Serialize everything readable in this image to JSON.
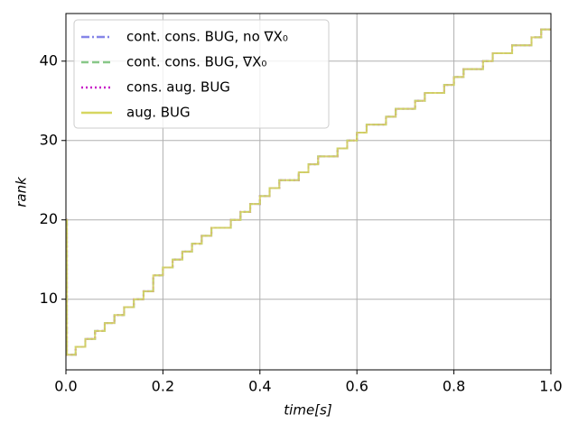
{
  "chart_data": {
    "type": "line",
    "step": "post",
    "xlabel": "time[s]",
    "ylabel": "rank",
    "xlim": [
      0,
      1
    ],
    "ylim": [
      1.1,
      46
    ],
    "xticks": [
      {
        "value": 0,
        "label": "0.0"
      },
      0.2,
      0.4,
      0.6,
      0.8,
      {
        "value": 1,
        "label": "1.0"
      }
    ],
    "yticks": [
      10,
      20,
      30,
      40
    ],
    "grid": true,
    "legend": "upper left",
    "x": [
      0,
      0.002,
      0.02,
      0.04,
      0.06,
      0.08,
      0.1,
      0.12,
      0.14,
      0.16,
      0.18,
      0.2,
      0.22,
      0.24,
      0.26,
      0.28,
      0.3,
      0.32,
      0.34,
      0.36,
      0.38,
      0.4,
      0.42,
      0.44,
      0.46,
      0.48,
      0.5,
      0.52,
      0.54,
      0.56,
      0.58,
      0.6,
      0.62,
      0.64,
      0.66,
      0.68,
      0.7,
      0.72,
      0.74,
      0.76,
      0.78,
      0.8,
      0.82,
      0.84,
      0.86,
      0.88,
      0.9,
      0.92,
      0.94,
      0.96,
      0.98,
      1.0
    ],
    "series": [
      {
        "name": "cont. cons. BUG, no ∇X₀",
        "color": "#8585e8",
        "linestyle": "dashdot",
        "values": [
          20,
          3,
          4,
          5,
          6,
          7,
          8,
          9,
          10,
          11,
          13,
          14,
          15,
          16,
          17,
          18,
          19,
          19,
          20,
          21,
          22,
          23,
          24,
          25,
          25,
          26,
          27,
          28,
          28,
          29,
          30,
          31,
          32,
          32,
          33,
          34,
          34,
          35,
          36,
          36,
          37,
          38,
          39,
          39,
          40,
          41,
          41,
          42,
          42,
          43,
          44,
          44
        ]
      },
      {
        "name": "cont. cons. BUG, ∇X₀",
        "color": "#88c888",
        "linestyle": "dashed",
        "values": [
          20,
          3,
          4,
          5,
          6,
          7,
          8,
          9,
          10,
          11,
          13,
          14,
          15,
          16,
          17,
          18,
          19,
          19,
          20,
          21,
          22,
          23,
          24,
          25,
          25,
          26,
          27,
          28,
          28,
          29,
          30,
          31,
          32,
          32,
          33,
          34,
          34,
          35,
          36,
          36,
          37,
          38,
          39,
          39,
          40,
          41,
          41,
          42,
          42,
          43,
          44,
          44
        ]
      },
      {
        "name": "cons. aug. BUG",
        "color": "#c81ec8",
        "linestyle": "dotted",
        "values": [
          20,
          3,
          4,
          5,
          6,
          7,
          8,
          9,
          10,
          11,
          13,
          14,
          15,
          16,
          17,
          18,
          19,
          19,
          20,
          21,
          22,
          23,
          24,
          25,
          25,
          26,
          27,
          28,
          28,
          29,
          30,
          31,
          32,
          32,
          33,
          34,
          34,
          35,
          36,
          36,
          37,
          38,
          39,
          39,
          40,
          41,
          41,
          42,
          42,
          43,
          44,
          44
        ]
      },
      {
        "name": "aug. BUG",
        "color": "#d6d660",
        "linestyle": "solid",
        "values": [
          20,
          3,
          4,
          5,
          6,
          7,
          8,
          9,
          10,
          11,
          13,
          14,
          15,
          16,
          17,
          18,
          19,
          19,
          20,
          21,
          22,
          23,
          24,
          25,
          25,
          26,
          27,
          28,
          28,
          29,
          30,
          31,
          32,
          32,
          33,
          34,
          34,
          35,
          36,
          36,
          37,
          38,
          39,
          39,
          40,
          41,
          41,
          42,
          42,
          43,
          44,
          44
        ]
      }
    ]
  }
}
